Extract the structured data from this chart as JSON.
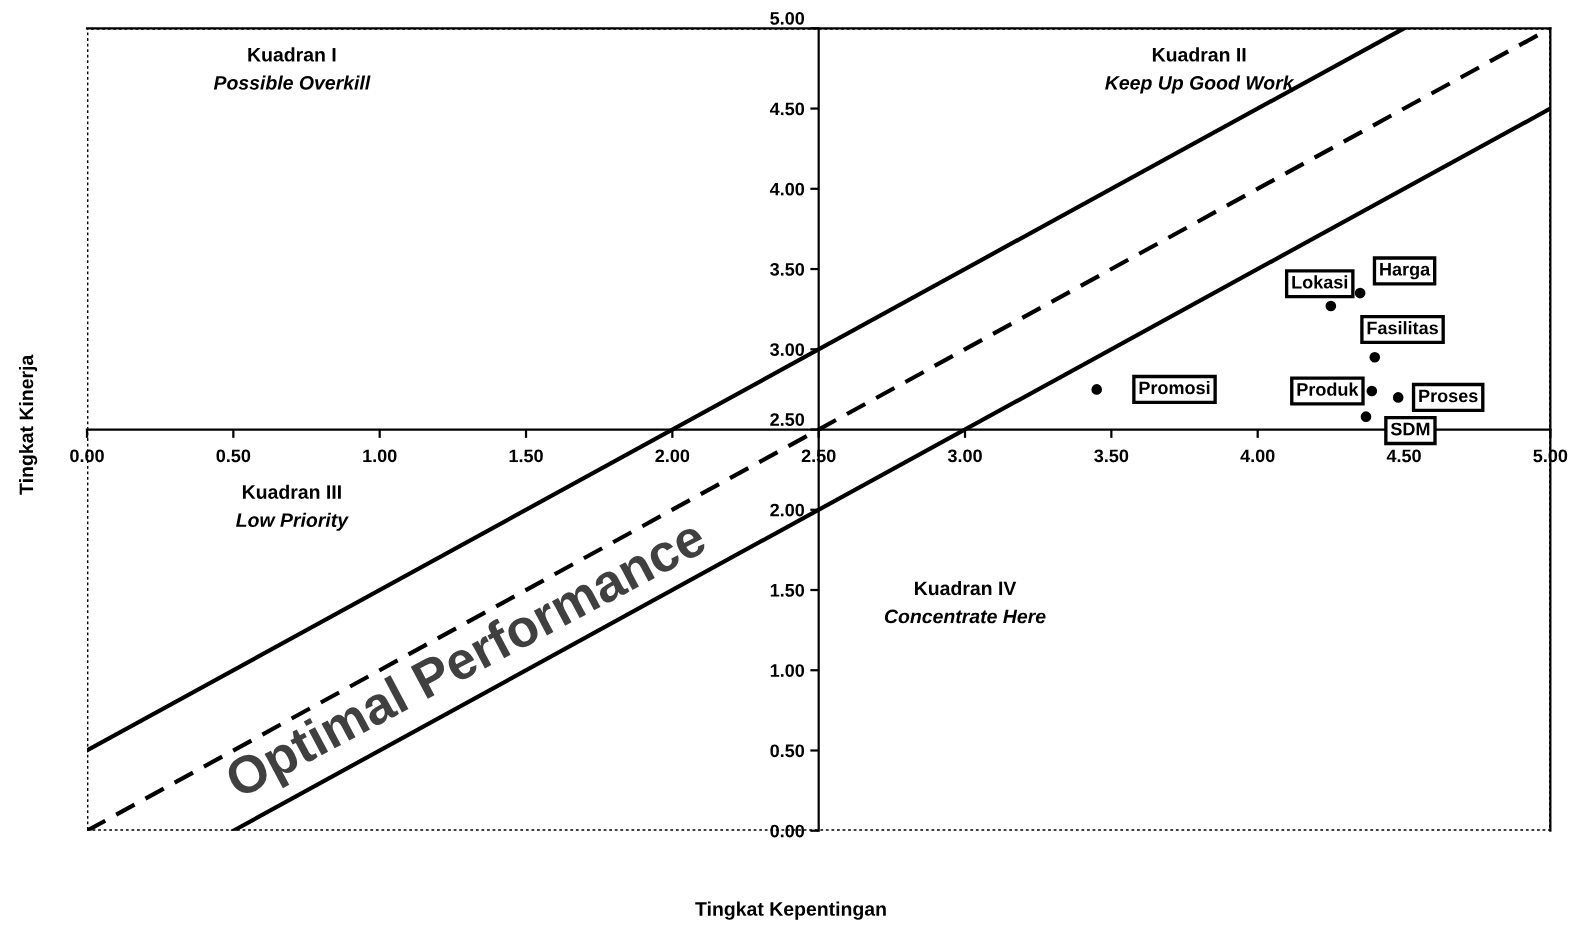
{
  "chart_data": {
    "type": "scatter",
    "xlabel": "Tingkat Kepentingan",
    "ylabel": "Tingkat Kinerja",
    "xlim": [
      0,
      5
    ],
    "ylim": [
      0,
      5
    ],
    "xticks": [
      {
        "value": 0,
        "label": "0.00"
      },
      {
        "value": 0.5,
        "label": "0.50"
      },
      {
        "value": 1,
        "label": "1.00"
      },
      {
        "value": 1.5,
        "label": "1.50"
      },
      {
        "value": 2,
        "label": "2.00"
      },
      {
        "value": 2.5,
        "label": "2.50"
      },
      {
        "value": 3,
        "label": "3.00"
      },
      {
        "value": 3.5,
        "label": "3.50"
      },
      {
        "value": 4,
        "label": "4.00"
      },
      {
        "value": 4.5,
        "label": "4.50"
      },
      {
        "value": 5,
        "label": "5.00"
      }
    ],
    "yticks": [
      {
        "value": 0,
        "label": "0.00"
      },
      {
        "value": 0.5,
        "label": "0.50"
      },
      {
        "value": 1,
        "label": "1.00"
      },
      {
        "value": 1.5,
        "label": "1.50"
      },
      {
        "value": 2,
        "label": "2.00"
      },
      {
        "value": 2.5,
        "label": "2.50"
      },
      {
        "value": 3,
        "label": "3.00"
      },
      {
        "value": 3.5,
        "label": "3.50"
      },
      {
        "value": 4,
        "label": "4.00"
      },
      {
        "value": 4.5,
        "label": "4.50"
      },
      {
        "value": 5,
        "label": "5.00"
      }
    ],
    "grid": false,
    "legend": false,
    "series": [
      {
        "type": "line",
        "color": "#000000",
        "line_style": "solid",
        "x": [
          0,
          4.5
        ],
        "values": [
          0.5,
          5
        ]
      },
      {
        "type": "line",
        "color": "#000000",
        "line_style": "dashed",
        "x": [
          0,
          5
        ],
        "values": [
          0,
          5
        ]
      },
      {
        "type": "line",
        "color": "#000000",
        "line_style": "solid",
        "x": [
          0.5,
          5
        ],
        "values": [
          0,
          4.5
        ]
      },
      {
        "color": "#000000",
        "marker": "circle",
        "x": [
          4.25,
          4.35,
          4.4,
          4.39,
          4.48,
          4.37,
          3.45
        ],
        "values": [
          3.27,
          3.35,
          2.95,
          2.74,
          2.7,
          2.58,
          2.75
        ]
      }
    ],
    "annotations": [
      {
        "text": "Lokasi",
        "x": 4.25,
        "y": 3.27
      },
      {
        "text": "Harga",
        "x": 4.35,
        "y": 3.35
      },
      {
        "text": "Fasilitas",
        "x": 4.4,
        "y": 2.95
      },
      {
        "text": "Produk",
        "x": 4.39,
        "y": 2.74
      },
      {
        "text": "Proses",
        "x": 4.48,
        "y": 2.7
      },
      {
        "text": "SDM",
        "x": 4.37,
        "y": 2.58
      },
      {
        "text": "Promosi",
        "x": 3.45,
        "y": 2.75
      },
      "Kuadran I",
      "Possible Overkill",
      "Kuadran II",
      "Keep Up Good Work",
      "Kuadran III",
      "Low Priority",
      "Kuadran IV",
      "Concentrate Here",
      "Optimal Performance"
    ]
  }
}
